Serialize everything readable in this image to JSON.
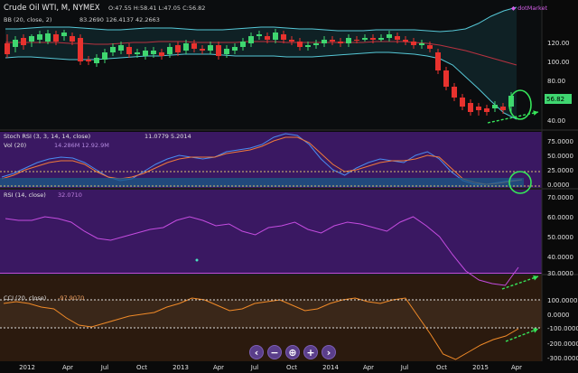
{
  "header": {
    "symbol": "Crude Oil WTI, M, NYMEX",
    "ohlc": "O:47.55 H:58.41 L:47.05 C:56.82",
    "watermark": "◆ dotMarket",
    "last_price": "56.82"
  },
  "panes": {
    "price": {
      "legend": "BB (20, close, 2)",
      "legend_values": "83.2690  126.4137  42.2663",
      "ticks": [
        "120.00",
        "100.00",
        "80.00",
        "60.00",
        "40.00"
      ]
    },
    "stoch": {
      "legend": "Stoch RSI (3, 3, 14, 14, close)",
      "legend_values": "11.0779   5.2014",
      "ticks": [
        "75.0000",
        "50.0000",
        "25.0000",
        "0.0000"
      ]
    },
    "vol": {
      "legend": "Vol (20)",
      "legend_values": "14.286M   12.92.9M"
    },
    "rsi": {
      "legend": "RSI (14, close)",
      "legend_values": "32.0710",
      "ticks": [
        "70.0000",
        "60.0000",
        "50.0000",
        "40.0000",
        "30.0000"
      ]
    },
    "cci": {
      "legend": "CCI (20, close)",
      "legend_values": "-97.9070",
      "ticks": [
        "100.0000",
        "0.0000",
        "-100.0000",
        "-200.0000",
        "-300.0000"
      ]
    }
  },
  "x_axis": {
    "labels": [
      "2012",
      "Apr",
      "Jul",
      "Oct",
      "2013",
      "Apr",
      "Jul",
      "Oct",
      "2014",
      "Apr",
      "Jul",
      "Oct",
      "2015",
      "Apr"
    ]
  },
  "nav": {
    "buttons": [
      "‹",
      "−",
      "⊕",
      "+",
      "›"
    ]
  },
  "colors": {
    "up": "#3fd670",
    "down": "#e8322e",
    "bb_band": "#56c7d6",
    "bb_mid": "#b83240",
    "stoch_k": "#4a8bf0",
    "stoch_d": "#f07a3a",
    "rsi_line": "#c44ce0",
    "cci_line": "#f08a28",
    "annotation": "#36e65a",
    "axis_text": "#e0e0e0"
  }
}
